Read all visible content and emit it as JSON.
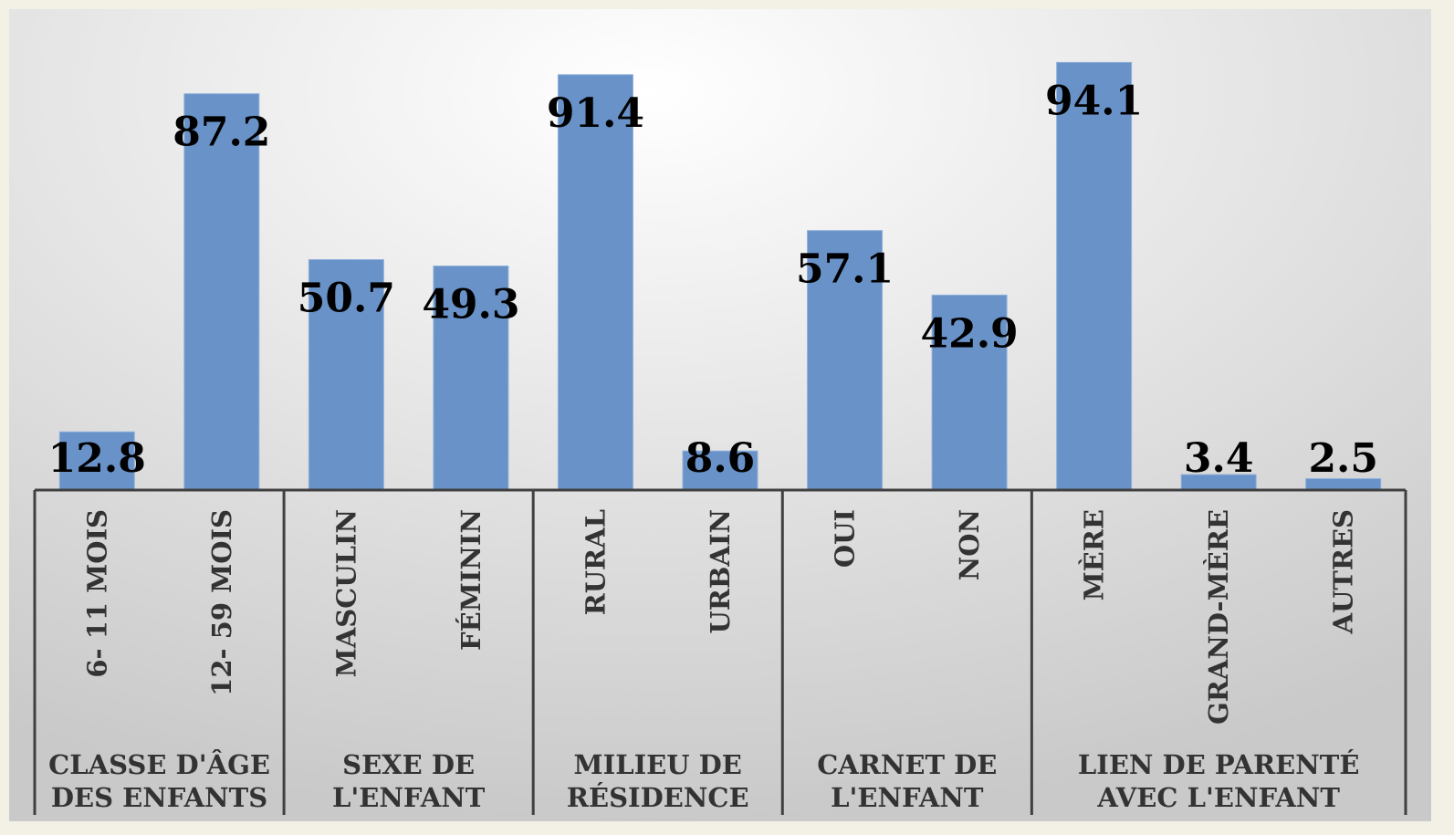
{
  "chart_data": {
    "type": "bar",
    "color": "#6892c8",
    "ylim": [
      0,
      100
    ],
    "groups": [
      {
        "name": [
          "CLASSE D'ÂGE",
          "DES ENFANTS"
        ],
        "categories": [
          "6- 11 MOIS",
          "12- 59 MOIS"
        ],
        "values": [
          12.8,
          87.2
        ]
      },
      {
        "name": [
          "SEXE DE",
          "L'ENFANT"
        ],
        "categories": [
          "MASCULIN",
          "FÉMININ"
        ],
        "values": [
          50.7,
          49.3
        ]
      },
      {
        "name": [
          "MILIEU DE",
          "RÉSIDENCE"
        ],
        "categories": [
          "RURAL",
          "URBAIN"
        ],
        "values": [
          91.4,
          8.6
        ]
      },
      {
        "name": [
          "CARNET DE",
          "L'ENFANT"
        ],
        "categories": [
          "OUI",
          "NON"
        ],
        "values": [
          57.1,
          42.9
        ]
      },
      {
        "name": [
          "LIEN DE PARENTÉ",
          "AVEC L'ENFANT"
        ],
        "categories": [
          "MÈRE",
          "GRAND-MÈRE",
          "AUTRES"
        ],
        "values": [
          94.1,
          3.4,
          2.5
        ]
      }
    ]
  }
}
